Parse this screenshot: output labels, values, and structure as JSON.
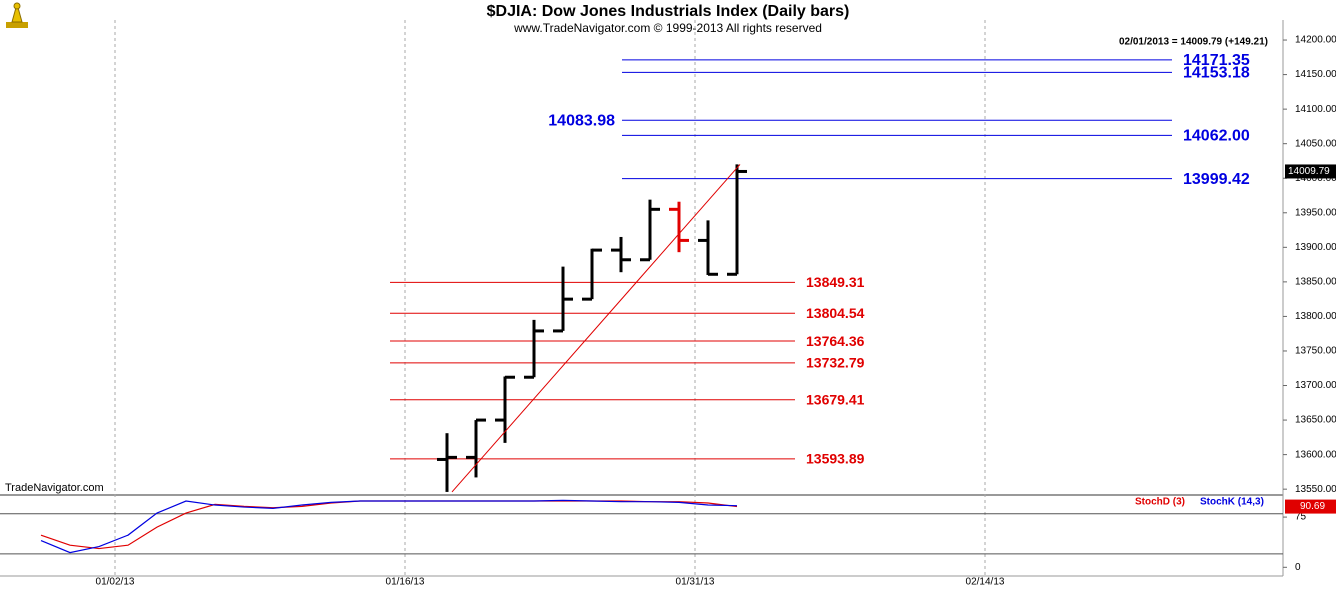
{
  "chart_data": {
    "type": "ohlc",
    "title": "$DJIA:  Dow Jones Industrials Index  (Daily bars)",
    "subtitle": "www.TradeNavigator.com © 1999-2013 All rights reserved",
    "info": "02/01/2013 = 14009.79 (+149.21)",
    "watermark": "TradeNavigator.com",
    "categories": [
      null,
      null,
      null,
      "01/02/13",
      null,
      null,
      null,
      null,
      null,
      null,
      null,
      null,
      null,
      "01/16/13",
      null,
      null,
      null,
      null,
      null,
      null,
      null,
      null,
      null,
      "01/31/13",
      null,
      null,
      null,
      null,
      null,
      null,
      null,
      null,
      null,
      "02/14/13",
      null,
      null,
      null,
      null,
      null,
      null,
      null,
      null,
      null,
      null
    ],
    "ylim": [
      13543,
      14229
    ],
    "yticks": [
      {
        "value": 13550,
        "label": "13550.00"
      },
      {
        "value": 13600,
        "label": "13600.00"
      },
      {
        "value": 13650,
        "label": "13650.00"
      },
      {
        "value": 13700,
        "label": "13700.00"
      },
      {
        "value": 13750,
        "label": "13750.00"
      },
      {
        "value": 13800,
        "label": "13800.00"
      },
      {
        "value": 13850,
        "label": "13850.00"
      },
      {
        "value": 13900,
        "label": "13900.00"
      },
      {
        "value": 13950,
        "label": "13950.00"
      },
      {
        "value": 14000,
        "label": "14000.00"
      },
      {
        "value": 14050,
        "label": "14050.00"
      },
      {
        "value": 14100,
        "label": "14100.00"
      },
      {
        "value": 14150,
        "label": "14150.00"
      },
      {
        "value": 14200,
        "label": "14200.00"
      }
    ],
    "y2lim": [
      -13,
      105
    ],
    "y2ticks": [
      0,
      75
    ],
    "stoch_levels": [
      20,
      80
    ],
    "series": [
      {
        "type": "ohlc",
        "color": "#000000",
        "colors": [
          null,
          null,
          null,
          null,
          null,
          null,
          null,
          null,
          null,
          null,
          null,
          null,
          null,
          null,
          "#000000",
          "#000000",
          "#000000",
          "#000000",
          "#000000",
          "#000000",
          "#000000",
          "#000000",
          "#e00000",
          "#000000",
          "#000000",
          null,
          null,
          null,
          null,
          null,
          null,
          null,
          null,
          null,
          null,
          null,
          null,
          null,
          null,
          null,
          null,
          null,
          null,
          null
        ],
        "open": [
          null,
          null,
          null,
          null,
          null,
          null,
          null,
          null,
          null,
          null,
          null,
          null,
          null,
          null,
          13593,
          13596,
          13650,
          13712,
          13779,
          13825,
          13896,
          13882,
          13955,
          13910,
          13861,
          null,
          null,
          null,
          null,
          null,
          null,
          null,
          null,
          null,
          null,
          null,
          null,
          null,
          null,
          null,
          null,
          null,
          null,
          null
        ],
        "high": [
          null,
          null,
          null,
          null,
          null,
          null,
          null,
          null,
          null,
          null,
          null,
          null,
          null,
          null,
          13631,
          13650,
          13713,
          13795,
          13872,
          13898,
          13915,
          13969,
          13966,
          13939,
          14020,
          null,
          null,
          null,
          null,
          null,
          null,
          null,
          null,
          null,
          null,
          null,
          null,
          null,
          null,
          null,
          null,
          null,
          null,
          null
        ],
        "low": [
          null,
          null,
          null,
          null,
          null,
          null,
          null,
          null,
          null,
          null,
          null,
          null,
          null,
          null,
          13546,
          13567,
          13617,
          13712,
          13779,
          13825,
          13864,
          13882,
          13893,
          13860,
          13861,
          null,
          null,
          null,
          null,
          null,
          null,
          null,
          null,
          null,
          null,
          null,
          null,
          null,
          null,
          null,
          null,
          null,
          null,
          null
        ],
        "close": [
          null,
          null,
          null,
          null,
          null,
          null,
          null,
          null,
          null,
          null,
          null,
          null,
          null,
          null,
          13596,
          13650,
          13712,
          13779,
          13825,
          13896,
          13882,
          13955,
          13910,
          13861,
          14009.79,
          null,
          null,
          null,
          null,
          null,
          null,
          null,
          null,
          null,
          null,
          null,
          null,
          null,
          null,
          null,
          null,
          null,
          null,
          null
        ]
      },
      {
        "name": "StochD (3)",
        "color": "#e00000",
        "axis": "y2",
        "values": [
          48,
          33,
          28,
          33,
          60,
          81,
          94,
          91,
          89,
          91,
          96,
          99,
          99,
          99,
          99,
          99,
          99,
          99,
          99,
          99,
          99,
          98,
          98,
          96,
          90.69,
          null,
          null,
          null,
          null,
          null,
          null,
          null,
          null,
          null,
          null,
          null,
          null,
          null,
          null,
          null,
          null,
          null,
          null,
          null
        ]
      },
      {
        "name": "StochK (14,3)",
        "color": "#0000e0",
        "axis": "y2",
        "values": [
          40,
          22,
          31,
          48,
          81,
          99,
          93,
          90,
          88,
          93,
          97,
          99,
          99,
          99,
          99,
          99,
          99,
          99,
          100,
          99,
          98,
          98,
          97,
          93,
          92,
          null,
          null,
          null,
          null,
          null,
          null,
          null,
          null,
          null,
          null,
          null,
          null,
          null,
          null,
          null,
          null,
          null,
          null,
          null
        ]
      }
    ],
    "resistance_levels": {
      "color": "#0000e0",
      "levels": [
        {
          "value": 14171.35,
          "label": "14171.35"
        },
        {
          "value": 14153.18,
          "label": "14153.18"
        },
        {
          "value": 14083.98,
          "label": "14083.98"
        },
        {
          "value": 14062,
          "label": "14062.00"
        },
        {
          "value": 13999.42,
          "label": "13999.42"
        }
      ]
    },
    "support_levels": {
      "color": "#e00000",
      "levels": [
        {
          "value": 13849.31,
          "label": "13849.31"
        },
        {
          "value": 13804.54,
          "label": "13804.54"
        },
        {
          "value": 13764.36,
          "label": "13764.36"
        },
        {
          "value": 13732.79,
          "label": "13732.79"
        },
        {
          "value": 13679.41,
          "label": "13679.41"
        },
        {
          "value": 13593.89,
          "label": "13593.89"
        }
      ]
    },
    "trendline_color": "#e00000"
  }
}
